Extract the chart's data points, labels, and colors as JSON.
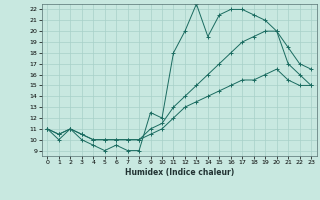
{
  "xlabel": "Humidex (Indice chaleur)",
  "bg_color": "#c8e8e0",
  "grid_color": "#a8d0c8",
  "line_color": "#1a6b60",
  "xlim": [
    -0.5,
    23.5
  ],
  "ylim": [
    8.5,
    22.5
  ],
  "xticks": [
    0,
    1,
    2,
    3,
    4,
    5,
    6,
    7,
    8,
    9,
    10,
    11,
    12,
    13,
    14,
    15,
    16,
    17,
    18,
    19,
    20,
    21,
    22,
    23
  ],
  "yticks": [
    9,
    10,
    11,
    12,
    13,
    14,
    15,
    16,
    17,
    18,
    19,
    20,
    21,
    22
  ],
  "line1_x": [
    0,
    1,
    2,
    3,
    4,
    5,
    6,
    7,
    8,
    9,
    10,
    11,
    12,
    13,
    14,
    15,
    16,
    17,
    18,
    19,
    20,
    21,
    22,
    23
  ],
  "line1_y": [
    11,
    10,
    11,
    10,
    9.5,
    9,
    9.5,
    9,
    9,
    12.5,
    12,
    18,
    20,
    22.5,
    19.5,
    21.5,
    22,
    22,
    21.5,
    21,
    20,
    17,
    16,
    15
  ],
  "line2_x": [
    0,
    1,
    2,
    3,
    4,
    5,
    6,
    7,
    8,
    9,
    10,
    11,
    12,
    13,
    14,
    15,
    16,
    17,
    18,
    19,
    20,
    21,
    22,
    23
  ],
  "line2_y": [
    11,
    10.5,
    11,
    10.5,
    10,
    10,
    10,
    10,
    10,
    11,
    11.5,
    13,
    14,
    15,
    16,
    17,
    18,
    19,
    19.5,
    20,
    20,
    18.5,
    17,
    16.5
  ],
  "line3_x": [
    0,
    1,
    2,
    3,
    4,
    5,
    6,
    7,
    8,
    9,
    10,
    11,
    12,
    13,
    14,
    15,
    16,
    17,
    18,
    19,
    20,
    21,
    22,
    23
  ],
  "line3_y": [
    11,
    10.5,
    11,
    10.5,
    10,
    10,
    10,
    10,
    10,
    10.5,
    11,
    12,
    13,
    13.5,
    14,
    14.5,
    15,
    15.5,
    15.5,
    16,
    16.5,
    15.5,
    15,
    15
  ]
}
